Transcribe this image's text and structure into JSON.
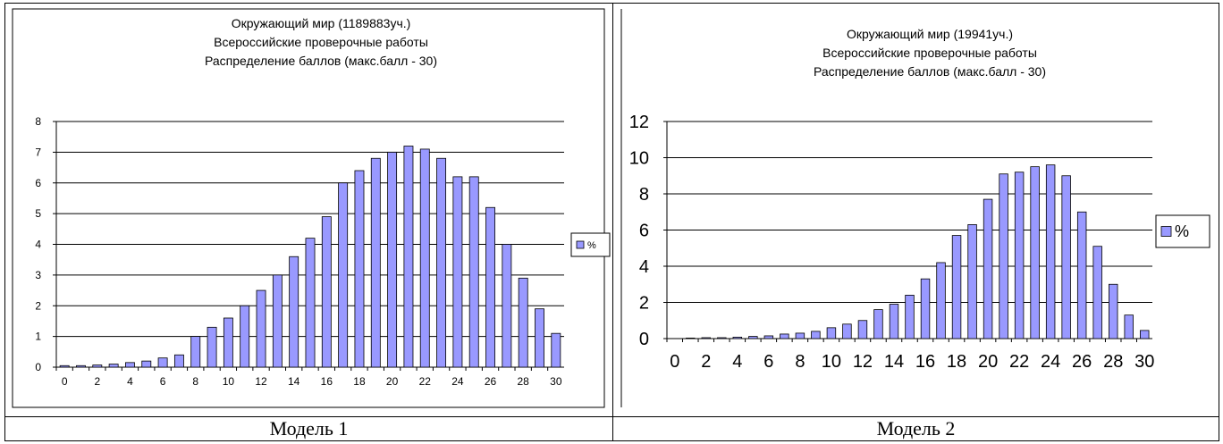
{
  "chart_data": [
    {
      "type": "bar",
      "title": [
        "Окружающий мир (1189883уч.)",
        "Всероссийские проверочные работы",
        "Распределение баллов (макс.балл - 30)"
      ],
      "categories": [
        0,
        1,
        2,
        3,
        4,
        5,
        6,
        7,
        8,
        9,
        10,
        11,
        12,
        13,
        14,
        15,
        16,
        17,
        18,
        19,
        20,
        21,
        22,
        23,
        24,
        25,
        26,
        27,
        28,
        29,
        30
      ],
      "x_tick_labels": [
        "0",
        "2",
        "4",
        "6",
        "8",
        "10",
        "12",
        "14",
        "16",
        "18",
        "20",
        "22",
        "24",
        "26",
        "28",
        "30"
      ],
      "series": [
        {
          "name": "%",
          "values": [
            0.05,
            0.05,
            0.07,
            0.1,
            0.15,
            0.2,
            0.3,
            0.4,
            1.0,
            1.3,
            1.6,
            2.0,
            2.5,
            3.0,
            3.6,
            4.2,
            4.9,
            6.0,
            6.4,
            6.8,
            7.0,
            7.2,
            7.1,
            6.8,
            6.2,
            6.2,
            5.2,
            4.0,
            2.9,
            1.9,
            1.1
          ]
        }
      ],
      "ylim": [
        0,
        8
      ],
      "y_ticks": [
        0,
        1,
        2,
        3,
        4,
        5,
        6,
        7,
        8
      ],
      "grid": true,
      "legend": "right",
      "bar_color": "#9999ff"
    },
    {
      "type": "bar",
      "title": [
        "Окружающий мир (19941уч.)",
        "Всероссийские проверочные работы",
        "Распределение баллов (макс.балл - 30)"
      ],
      "categories": [
        0,
        1,
        2,
        3,
        4,
        5,
        6,
        7,
        8,
        9,
        10,
        11,
        12,
        13,
        14,
        15,
        16,
        17,
        18,
        19,
        20,
        21,
        22,
        23,
        24,
        25,
        26,
        27,
        28,
        29,
        30
      ],
      "x_tick_labels": [
        "0",
        "2",
        "4",
        "6",
        "8",
        "10",
        "12",
        "14",
        "16",
        "18",
        "20",
        "22",
        "24",
        "26",
        "28",
        "30"
      ],
      "series": [
        {
          "name": "%",
          "values": [
            0,
            0.03,
            0.05,
            0.05,
            0.08,
            0.12,
            0.15,
            0.25,
            0.3,
            0.4,
            0.6,
            0.8,
            1.0,
            1.6,
            1.9,
            2.4,
            3.3,
            4.2,
            5.7,
            6.3,
            7.7,
            9.1,
            9.2,
            9.5,
            9.6,
            9.0,
            7.0,
            5.1,
            3.0,
            1.3,
            0.45
          ]
        }
      ],
      "ylim": [
        0,
        12
      ],
      "y_ticks": [
        0,
        2,
        4,
        6,
        8,
        10,
        12
      ],
      "grid": true,
      "legend": "right",
      "bar_color": "#9999ff"
    }
  ],
  "captions": [
    "Модель 1",
    "Модель 2"
  ]
}
